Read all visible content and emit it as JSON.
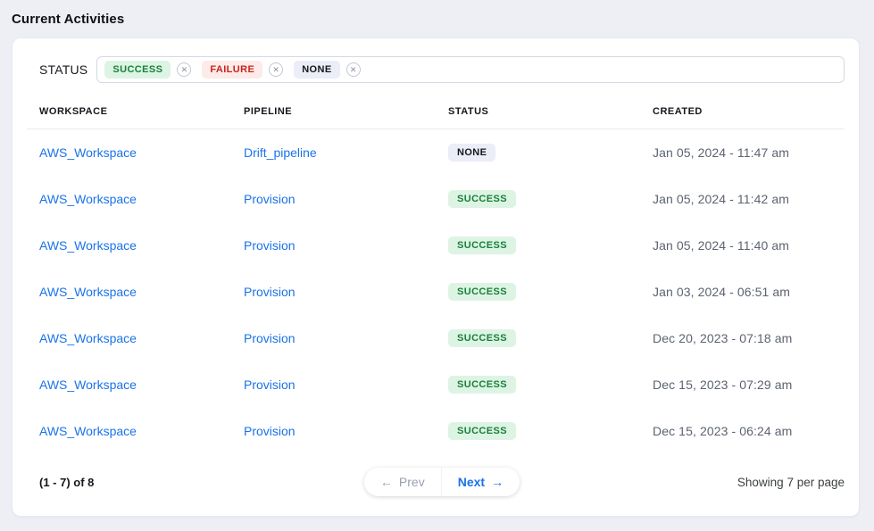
{
  "page": {
    "title": "Current Activities"
  },
  "filter": {
    "label": "STATUS",
    "tags": [
      {
        "label": "SUCCESS",
        "type": "success"
      },
      {
        "label": "FAILURE",
        "type": "failure"
      },
      {
        "label": "NONE",
        "type": "none"
      }
    ],
    "remove_icon_glyph": "✕"
  },
  "table": {
    "columns": [
      "WORKSPACE",
      "PIPELINE",
      "STATUS",
      "CREATED"
    ],
    "rows": [
      {
        "workspace": "AWS_Workspace",
        "pipeline": "Drift_pipeline",
        "status": "NONE",
        "status_type": "none",
        "created": "Jan 05, 2024 - 11:47 am"
      },
      {
        "workspace": "AWS_Workspace",
        "pipeline": "Provision",
        "status": "SUCCESS",
        "status_type": "success",
        "created": "Jan 05, 2024 - 11:42 am"
      },
      {
        "workspace": "AWS_Workspace",
        "pipeline": "Provision",
        "status": "SUCCESS",
        "status_type": "success",
        "created": "Jan 05, 2024 - 11:40 am"
      },
      {
        "workspace": "AWS_Workspace",
        "pipeline": "Provision",
        "status": "SUCCESS",
        "status_type": "success",
        "created": "Jan 03, 2024 - 06:51 am"
      },
      {
        "workspace": "AWS_Workspace",
        "pipeline": "Provision",
        "status": "SUCCESS",
        "status_type": "success",
        "created": "Dec 20, 2023 - 07:18 am"
      },
      {
        "workspace": "AWS_Workspace",
        "pipeline": "Provision",
        "status": "SUCCESS",
        "status_type": "success",
        "created": "Dec 15, 2023 - 07:29 am"
      },
      {
        "workspace": "AWS_Workspace",
        "pipeline": "Provision",
        "status": "SUCCESS",
        "status_type": "success",
        "created": "Dec 15, 2023 - 06:24 am"
      }
    ]
  },
  "pagination": {
    "range_text": "(1 - 7) of 8",
    "prev_label": "Prev",
    "prev_arrow": "←",
    "next_label": "Next",
    "next_arrow": "→",
    "per_page_text": "Showing 7 per page"
  },
  "colors": {
    "link_blue": "#1a73e8",
    "success_text": "#188038",
    "success_bg": "#ddf4e4",
    "failure_text": "#c8251d",
    "failure_bg": "#fcebe8",
    "none_text": "#16181d",
    "none_bg": "#ebedf8",
    "page_bg": "#edeff5"
  }
}
